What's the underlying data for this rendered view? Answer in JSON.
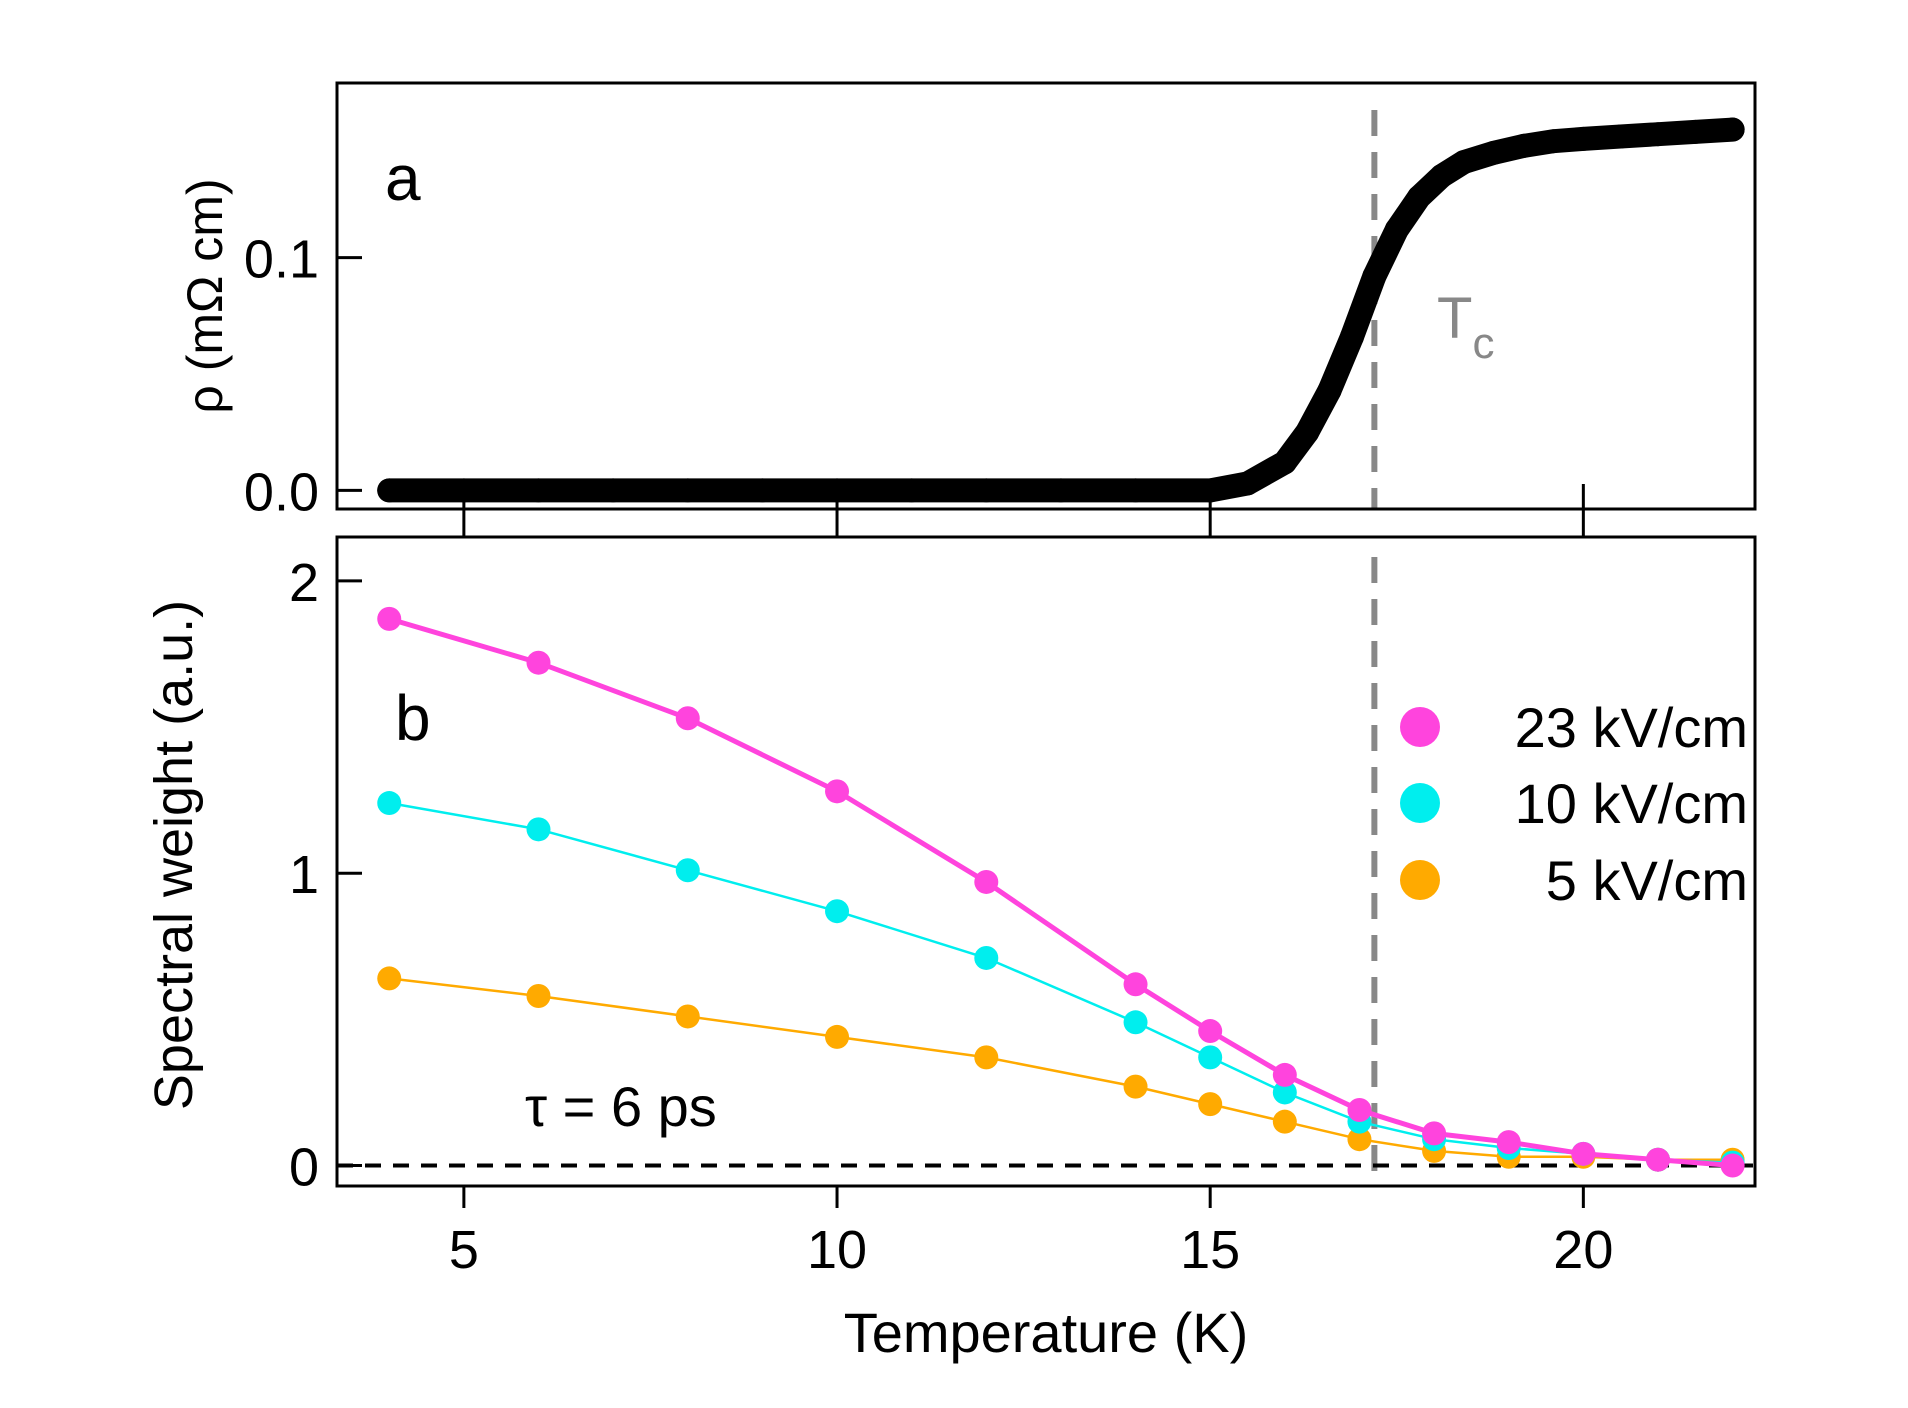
{
  "chart_data": [
    {
      "type": "scatter",
      "panel_label": "a",
      "ylabel": "ρ (mΩ cm)",
      "xlabel": "",
      "xlim": [
        3.3,
        22.3
      ],
      "ylim": [
        -0.008,
        0.175
      ],
      "y_ticks": [
        0.0,
        0.1
      ],
      "y_tick_labels": [
        "0.0",
        "0.1"
      ],
      "series": [
        {
          "name": "resistivity",
          "color": "#000000",
          "x": [
            4,
            5,
            6,
            7,
            8,
            9,
            10,
            11,
            12,
            13,
            14,
            15,
            15.5,
            16,
            16.3,
            16.6,
            16.9,
            17.2,
            17.5,
            17.8,
            18.1,
            18.4,
            18.8,
            19.2,
            19.6,
            20,
            20.5,
            21,
            21.5,
            22
          ],
          "y": [
            0,
            0,
            0,
            0,
            0,
            0,
            0,
            0,
            0,
            0,
            0,
            0,
            0.003,
            0.012,
            0.025,
            0.043,
            0.066,
            0.092,
            0.112,
            0.126,
            0.135,
            0.141,
            0.145,
            0.148,
            0.15,
            0.151,
            0.152,
            0.153,
            0.154,
            0.155
          ]
        }
      ],
      "annotations": [
        {
          "type": "vline",
          "x": 17.2,
          "label": "T",
          "subscript": "c",
          "color": "#888888"
        }
      ]
    },
    {
      "type": "line",
      "panel_label": "b",
      "ylabel": "Spectral weight (a.u.)",
      "xlabel": "Temperature (K)",
      "xlim": [
        3.3,
        22.3
      ],
      "ylim": [
        -0.07,
        2.15
      ],
      "x_ticks": [
        5,
        10,
        15,
        20
      ],
      "x_tick_labels": [
        "5",
        "10",
        "15",
        "20"
      ],
      "y_ticks": [
        0,
        1,
        2
      ],
      "y_tick_labels": [
        "0",
        "1",
        "2"
      ],
      "series": [
        {
          "name": "23 kV/cm",
          "color": "#ff44dd",
          "x": [
            4,
            6,
            8,
            10,
            12,
            14,
            15,
            16,
            17,
            18,
            19,
            20,
            21,
            22
          ],
          "y": [
            1.87,
            1.72,
            1.53,
            1.28,
            0.97,
            0.62,
            0.46,
            0.31,
            0.19,
            0.11,
            0.08,
            0.04,
            0.02,
            0.0
          ]
        },
        {
          "name": "10 kV/cm",
          "color": "#00eeee",
          "x": [
            4,
            6,
            8,
            10,
            12,
            14,
            15,
            16,
            17,
            18,
            19,
            20,
            21,
            22
          ],
          "y": [
            1.24,
            1.15,
            1.01,
            0.87,
            0.71,
            0.49,
            0.37,
            0.25,
            0.15,
            0.09,
            0.06,
            0.04,
            0.02,
            0.01
          ]
        },
        {
          "name": "5 kV/cm",
          "color": "#ffaa00",
          "x": [
            4,
            6,
            8,
            10,
            12,
            14,
            15,
            16,
            17,
            18,
            19,
            20,
            21,
            22
          ],
          "y": [
            0.64,
            0.58,
            0.51,
            0.44,
            0.37,
            0.27,
            0.21,
            0.15,
            0.09,
            0.05,
            0.03,
            0.03,
            0.02,
            0.02
          ]
        }
      ],
      "annotations": [
        {
          "type": "vline",
          "x": 17.2,
          "color": "#888888"
        },
        {
          "type": "hline",
          "y": 0,
          "color": "#000000"
        },
        {
          "type": "text",
          "text": "τ = 6 ps"
        }
      ],
      "legend": {
        "placement": "right",
        "entries": [
          "23 kV/cm",
          "10 kV/cm",
          "5 kV/cm"
        ]
      }
    }
  ]
}
